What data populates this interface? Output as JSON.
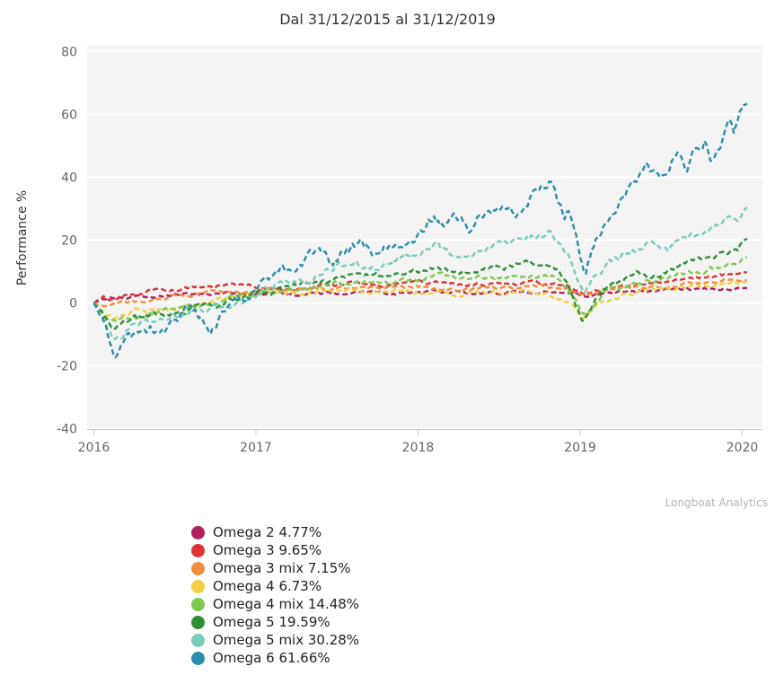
{
  "credits": "Longboat Analytics",
  "chart_data": {
    "type": "line",
    "title": "Dal 31/12/2015 al 31/12/2019",
    "xlabel": "",
    "ylabel": "Performance %",
    "xlim": [
      2015.96,
      2020.17
    ],
    "ylim": [
      -40,
      80
    ],
    "xticks": [
      2016,
      2017,
      2018,
      2019,
      2020
    ],
    "yticks": [
      80,
      60,
      40,
      20,
      0,
      -20,
      -40
    ],
    "grid": true,
    "legend_position": "bottom-left",
    "line_style": "dashed",
    "series": [
      {
        "name": "Omega 2",
        "value_pct": 4.77,
        "label": "Omega 2 4.77%",
        "color": "#b11f60",
        "points": [
          [
            2016.0,
            0
          ],
          [
            2016.08,
            1.5
          ],
          [
            2016.15,
            0.8
          ],
          [
            2016.3,
            2
          ],
          [
            2016.5,
            2.6
          ],
          [
            2016.7,
            3
          ],
          [
            2016.85,
            3.2
          ],
          [
            2017.0,
            2.6
          ],
          [
            2017.2,
            2.6
          ],
          [
            2017.45,
            3.2
          ],
          [
            2017.7,
            3
          ],
          [
            2017.95,
            3.2
          ],
          [
            2018.1,
            3.6
          ],
          [
            2018.3,
            3.2
          ],
          [
            2018.55,
            3.6
          ],
          [
            2018.8,
            3.6
          ],
          [
            2018.92,
            3
          ],
          [
            2019.02,
            2.2
          ],
          [
            2019.15,
            3
          ],
          [
            2019.35,
            3.6
          ],
          [
            2019.55,
            4
          ],
          [
            2019.75,
            4.4
          ],
          [
            2019.9,
            4.6
          ],
          [
            2020.0,
            4.77
          ],
          [
            2020.03,
            4.8
          ]
        ]
      },
      {
        "name": "Omega 3",
        "value_pct": 9.65,
        "label": "Omega 3 9.65%",
        "color": "#dd3333",
        "points": [
          [
            2016.0,
            0
          ],
          [
            2016.06,
            1.8
          ],
          [
            2016.12,
            1
          ],
          [
            2016.2,
            2.5
          ],
          [
            2016.35,
            3.8
          ],
          [
            2016.5,
            4.2
          ],
          [
            2016.62,
            5
          ],
          [
            2016.75,
            5.2
          ],
          [
            2016.9,
            5.8
          ],
          [
            2017.0,
            5
          ],
          [
            2017.15,
            4.8
          ],
          [
            2017.35,
            5.5
          ],
          [
            2017.55,
            6
          ],
          [
            2017.75,
            5.8
          ],
          [
            2017.95,
            6.2
          ],
          [
            2018.1,
            6.5
          ],
          [
            2018.25,
            5.5
          ],
          [
            2018.45,
            6
          ],
          [
            2018.65,
            6.2
          ],
          [
            2018.82,
            6.2
          ],
          [
            2018.92,
            5
          ],
          [
            2019.02,
            3
          ],
          [
            2019.15,
            4.5
          ],
          [
            2019.35,
            6
          ],
          [
            2019.55,
            7
          ],
          [
            2019.7,
            7.8
          ],
          [
            2019.85,
            8.8
          ],
          [
            2019.95,
            9.2
          ],
          [
            2020.0,
            9.65
          ],
          [
            2020.03,
            9.7
          ]
        ]
      },
      {
        "name": "Omega 3 mix",
        "value_pct": 7.15,
        "label": "Omega 3 mix 7.15%",
        "color": "#f18d3b",
        "points": [
          [
            2016.0,
            0
          ],
          [
            2016.08,
            -1.5
          ],
          [
            2016.15,
            -0.8
          ],
          [
            2016.3,
            1
          ],
          [
            2016.5,
            2
          ],
          [
            2016.7,
            3
          ],
          [
            2016.9,
            3.8
          ],
          [
            2017.0,
            3.8
          ],
          [
            2017.2,
            3.8
          ],
          [
            2017.4,
            4.5
          ],
          [
            2017.6,
            4.8
          ],
          [
            2017.8,
            4.8
          ],
          [
            2018.0,
            5
          ],
          [
            2018.2,
            4.2
          ],
          [
            2018.4,
            4.8
          ],
          [
            2018.6,
            5
          ],
          [
            2018.8,
            5
          ],
          [
            2018.92,
            4
          ],
          [
            2019.02,
            1.8
          ],
          [
            2019.15,
            3.5
          ],
          [
            2019.35,
            4.8
          ],
          [
            2019.55,
            5.5
          ],
          [
            2019.75,
            6.2
          ],
          [
            2019.9,
            6.8
          ],
          [
            2020.0,
            7.15
          ],
          [
            2020.03,
            7.2
          ]
        ]
      },
      {
        "name": "Omega 4",
        "value_pct": 6.73,
        "label": "Omega 4 6.73%",
        "color": "#f3d043",
        "points": [
          [
            2016.0,
            0
          ],
          [
            2016.08,
            -4
          ],
          [
            2016.13,
            -5
          ],
          [
            2016.25,
            -2.5
          ],
          [
            2016.4,
            -1.5
          ],
          [
            2016.55,
            -1
          ],
          [
            2016.7,
            0
          ],
          [
            2016.9,
            2
          ],
          [
            2017.0,
            2.8
          ],
          [
            2017.2,
            2.8
          ],
          [
            2017.4,
            3.8
          ],
          [
            2017.6,
            4
          ],
          [
            2017.8,
            3.8
          ],
          [
            2018.0,
            4
          ],
          [
            2018.2,
            2.8
          ],
          [
            2018.4,
            3
          ],
          [
            2018.6,
            3.8
          ],
          [
            2018.8,
            3
          ],
          [
            2018.92,
            0.5
          ],
          [
            2019.02,
            -4.5
          ],
          [
            2019.15,
            0.5
          ],
          [
            2019.3,
            2.5
          ],
          [
            2019.5,
            4.5
          ],
          [
            2019.7,
            5.8
          ],
          [
            2019.9,
            6.4
          ],
          [
            2020.0,
            6.73
          ],
          [
            2020.03,
            6.7
          ]
        ]
      },
      {
        "name": "Omega 4 mix",
        "value_pct": 14.48,
        "label": "Omega 4 mix 14.48%",
        "color": "#7dc94f",
        "points": [
          [
            2016.0,
            0
          ],
          [
            2016.08,
            -5
          ],
          [
            2016.13,
            -6.5
          ],
          [
            2016.25,
            -4
          ],
          [
            2016.4,
            -3
          ],
          [
            2016.55,
            -2
          ],
          [
            2016.7,
            -0.5
          ],
          [
            2016.9,
            1.5
          ],
          [
            2017.0,
            3
          ],
          [
            2017.2,
            4
          ],
          [
            2017.4,
            5.5
          ],
          [
            2017.6,
            6.5
          ],
          [
            2017.8,
            6.5
          ],
          [
            2018.0,
            7.5
          ],
          [
            2018.1,
            8.5
          ],
          [
            2018.25,
            7.5
          ],
          [
            2018.45,
            8
          ],
          [
            2018.65,
            8.8
          ],
          [
            2018.82,
            8.8
          ],
          [
            2018.92,
            5
          ],
          [
            2019.02,
            -3.5
          ],
          [
            2019.15,
            3
          ],
          [
            2019.3,
            6
          ],
          [
            2019.5,
            7.5
          ],
          [
            2019.65,
            9
          ],
          [
            2019.8,
            10.5
          ],
          [
            2019.92,
            12
          ],
          [
            2020.0,
            14.2
          ],
          [
            2020.03,
            14.5
          ]
        ]
      },
      {
        "name": "Omega 5",
        "value_pct": 19.59,
        "label": "Omega 5 19.59%",
        "color": "#2e9036",
        "points": [
          [
            2016.0,
            0
          ],
          [
            2016.08,
            -6
          ],
          [
            2016.13,
            -8.5
          ],
          [
            2016.25,
            -5
          ],
          [
            2016.4,
            -4
          ],
          [
            2016.55,
            -3
          ],
          [
            2016.7,
            -1
          ],
          [
            2016.9,
            1.5
          ],
          [
            2017.0,
            3.2
          ],
          [
            2017.2,
            5
          ],
          [
            2017.4,
            7
          ],
          [
            2017.6,
            8
          ],
          [
            2017.8,
            8
          ],
          [
            2018.0,
            10
          ],
          [
            2018.1,
            11.5
          ],
          [
            2018.25,
            9.5
          ],
          [
            2018.45,
            11
          ],
          [
            2018.65,
            12.5
          ],
          [
            2018.82,
            12.5
          ],
          [
            2018.92,
            7
          ],
          [
            2019.02,
            -6
          ],
          [
            2019.1,
            1
          ],
          [
            2019.2,
            5
          ],
          [
            2019.35,
            8.5
          ],
          [
            2019.5,
            9
          ],
          [
            2019.6,
            11.5
          ],
          [
            2019.7,
            13
          ],
          [
            2019.8,
            13.5
          ],
          [
            2019.9,
            15.5
          ],
          [
            2019.97,
            17
          ],
          [
            2020.0,
            19
          ],
          [
            2020.03,
            20.5
          ]
        ]
      },
      {
        "name": "Omega 5 mix",
        "value_pct": 30.28,
        "label": "Omega 5 mix 30.28%",
        "color": "#77ccbc",
        "points": [
          [
            2016.0,
            0
          ],
          [
            2016.08,
            -8
          ],
          [
            2016.13,
            -11.5
          ],
          [
            2016.25,
            -7
          ],
          [
            2016.4,
            -6
          ],
          [
            2016.55,
            -4
          ],
          [
            2016.7,
            -2
          ],
          [
            2016.9,
            1
          ],
          [
            2017.0,
            3.5
          ],
          [
            2017.15,
            6
          ],
          [
            2017.3,
            8
          ],
          [
            2017.45,
            10.5
          ],
          [
            2017.6,
            12.5
          ],
          [
            2017.72,
            11
          ],
          [
            2017.85,
            13
          ],
          [
            2018.0,
            15.5
          ],
          [
            2018.1,
            19.5
          ],
          [
            2018.2,
            15.5
          ],
          [
            2018.35,
            17
          ],
          [
            2018.5,
            19
          ],
          [
            2018.65,
            21
          ],
          [
            2018.8,
            22.5
          ],
          [
            2018.88,
            18
          ],
          [
            2018.95,
            13
          ],
          [
            2019.02,
            2
          ],
          [
            2019.1,
            9
          ],
          [
            2019.2,
            13.5
          ],
          [
            2019.35,
            17
          ],
          [
            2019.45,
            19.5
          ],
          [
            2019.55,
            17.5
          ],
          [
            2019.65,
            21
          ],
          [
            2019.75,
            22
          ],
          [
            2019.82,
            24
          ],
          [
            2019.9,
            26
          ],
          [
            2019.97,
            27.5
          ],
          [
            2020.0,
            29
          ],
          [
            2020.03,
            30.5
          ]
        ]
      },
      {
        "name": "Omega 6",
        "value_pct": 61.66,
        "label": "Omega 6 61.66%",
        "color": "#2b8dad",
        "points": [
          [
            2016.0,
            0
          ],
          [
            2016.05,
            -6
          ],
          [
            2016.1,
            -13
          ],
          [
            2016.13,
            -17
          ],
          [
            2016.2,
            -9
          ],
          [
            2016.27,
            -11
          ],
          [
            2016.35,
            -8
          ],
          [
            2016.42,
            -10
          ],
          [
            2016.5,
            -5
          ],
          [
            2016.58,
            -2
          ],
          [
            2016.65,
            -5
          ],
          [
            2016.72,
            -7
          ],
          [
            2016.8,
            -3
          ],
          [
            2016.87,
            2
          ],
          [
            2016.95,
            2.5
          ],
          [
            2017.0,
            5
          ],
          [
            2017.1,
            7.5
          ],
          [
            2017.2,
            10
          ],
          [
            2017.3,
            13
          ],
          [
            2017.4,
            15
          ],
          [
            2017.47,
            12.5
          ],
          [
            2017.55,
            16
          ],
          [
            2017.65,
            18.5
          ],
          [
            2017.72,
            16
          ],
          [
            2017.8,
            18
          ],
          [
            2017.9,
            20
          ],
          [
            2017.97,
            19
          ],
          [
            2018.05,
            24
          ],
          [
            2018.1,
            28
          ],
          [
            2018.17,
            24
          ],
          [
            2018.25,
            26.5
          ],
          [
            2018.33,
            24
          ],
          [
            2018.4,
            28
          ],
          [
            2018.5,
            29
          ],
          [
            2018.57,
            32
          ],
          [
            2018.63,
            29
          ],
          [
            2018.7,
            34
          ],
          [
            2018.77,
            38.5
          ],
          [
            2018.82,
            39.5
          ],
          [
            2018.86,
            32
          ],
          [
            2018.9,
            27
          ],
          [
            2018.93,
            31
          ],
          [
            2018.97,
            22
          ],
          [
            2019.0,
            15
          ],
          [
            2019.03,
            9
          ],
          [
            2019.1,
            21
          ],
          [
            2019.17,
            26
          ],
          [
            2019.25,
            32
          ],
          [
            2019.32,
            37
          ],
          [
            2019.4,
            44
          ],
          [
            2019.45,
            40
          ],
          [
            2019.5,
            38
          ],
          [
            2019.57,
            45
          ],
          [
            2019.62,
            47
          ],
          [
            2019.66,
            43
          ],
          [
            2019.72,
            49
          ],
          [
            2019.77,
            52
          ],
          [
            2019.81,
            47
          ],
          [
            2019.85,
            51
          ],
          [
            2019.89,
            55
          ],
          [
            2019.92,
            57
          ],
          [
            2019.95,
            53
          ],
          [
            2019.98,
            58
          ],
          [
            2020.0,
            61
          ],
          [
            2020.03,
            63.5
          ]
        ]
      }
    ]
  }
}
